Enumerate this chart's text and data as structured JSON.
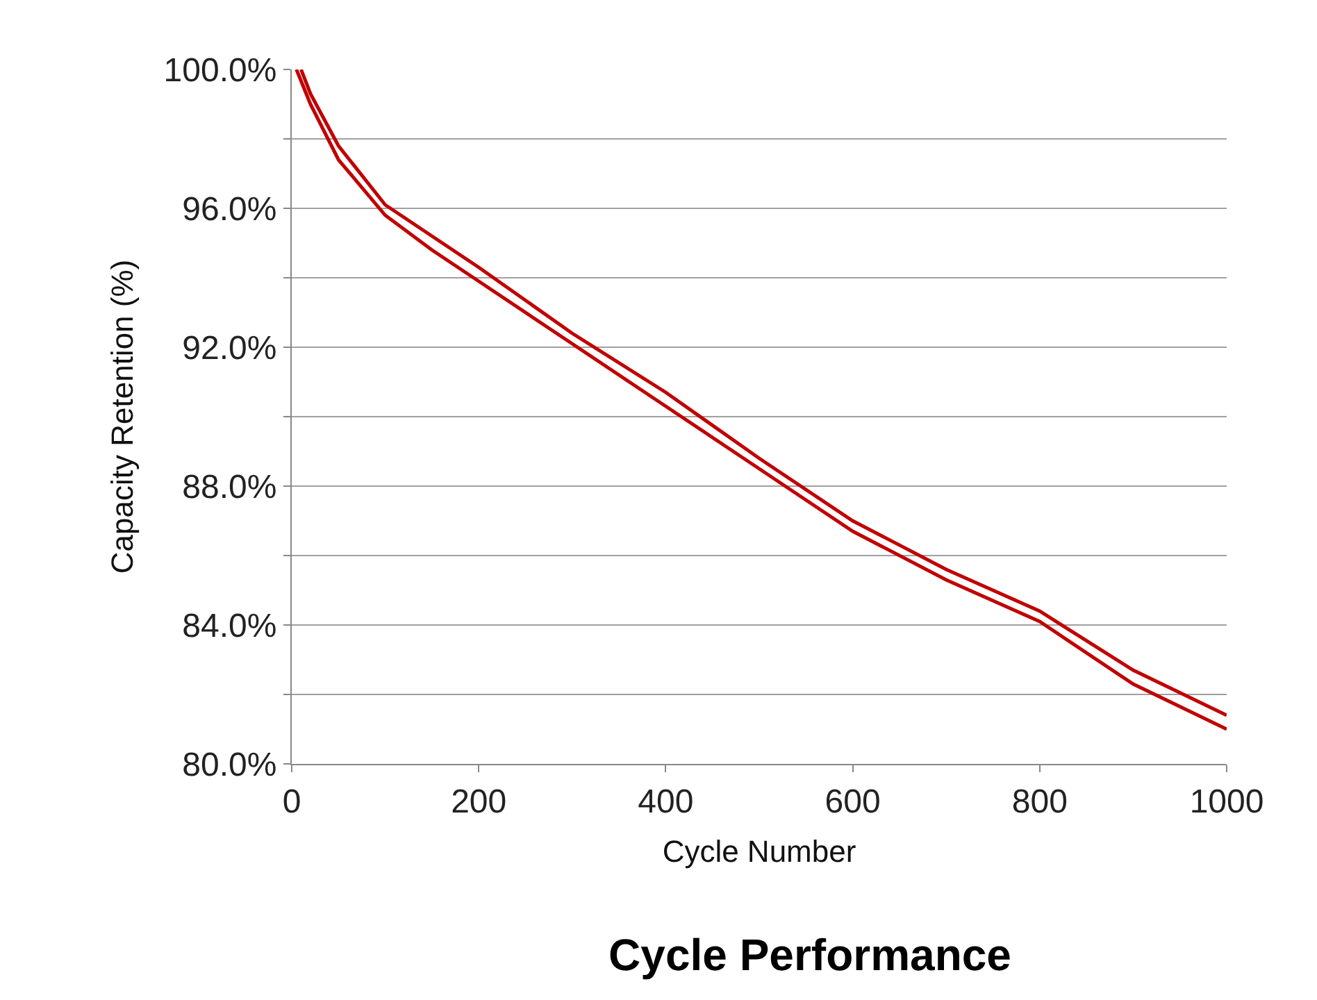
{
  "chart_data": {
    "type": "line",
    "title": "Cycle Performance",
    "xlabel": "Cycle Number",
    "ylabel": "Capacity Retention (%)",
    "xlim": [
      0,
      1000
    ],
    "xticks": [
      0,
      200,
      400,
      600,
      800,
      1000
    ],
    "ylim": [
      80,
      100
    ],
    "yticks": [
      {
        "value": 80,
        "label": "80.0%"
      },
      {
        "value": 82,
        "label": null
      },
      {
        "value": 84,
        "label": "84.0%"
      },
      {
        "value": 86,
        "label": null
      },
      {
        "value": 88,
        "label": "88.0%"
      },
      {
        "value": 90,
        "label": null
      },
      {
        "value": 92,
        "label": "92.0%"
      },
      {
        "value": 94,
        "label": null
      },
      {
        "value": 96,
        "label": "96.0%"
      },
      {
        "value": 98,
        "label": null
      },
      {
        "value": 100,
        "label": "100.0%"
      }
    ],
    "grid": "y",
    "legend": false,
    "marker": "none",
    "line_style": "solid",
    "series": [
      {
        "color": "#c00000",
        "x": [
          10,
          20,
          50,
          100,
          150,
          200,
          300,
          400,
          500,
          600,
          700,
          800,
          900,
          1000
        ],
        "values": [
          100,
          99.3,
          97.8,
          96.1,
          95.2,
          94.3,
          92.4,
          90.7,
          88.8,
          87.0,
          85.6,
          84.4,
          82.7,
          81.4
        ]
      },
      {
        "color": "#c00000",
        "x": [
          5,
          20,
          50,
          100,
          150,
          200,
          300,
          400,
          500,
          600,
          700,
          800,
          900,
          1000
        ],
        "values": [
          100,
          99.0,
          97.4,
          95.8,
          94.8,
          93.9,
          92.1,
          90.3,
          88.5,
          86.7,
          85.3,
          84.1,
          82.3,
          81.0
        ]
      }
    ]
  }
}
